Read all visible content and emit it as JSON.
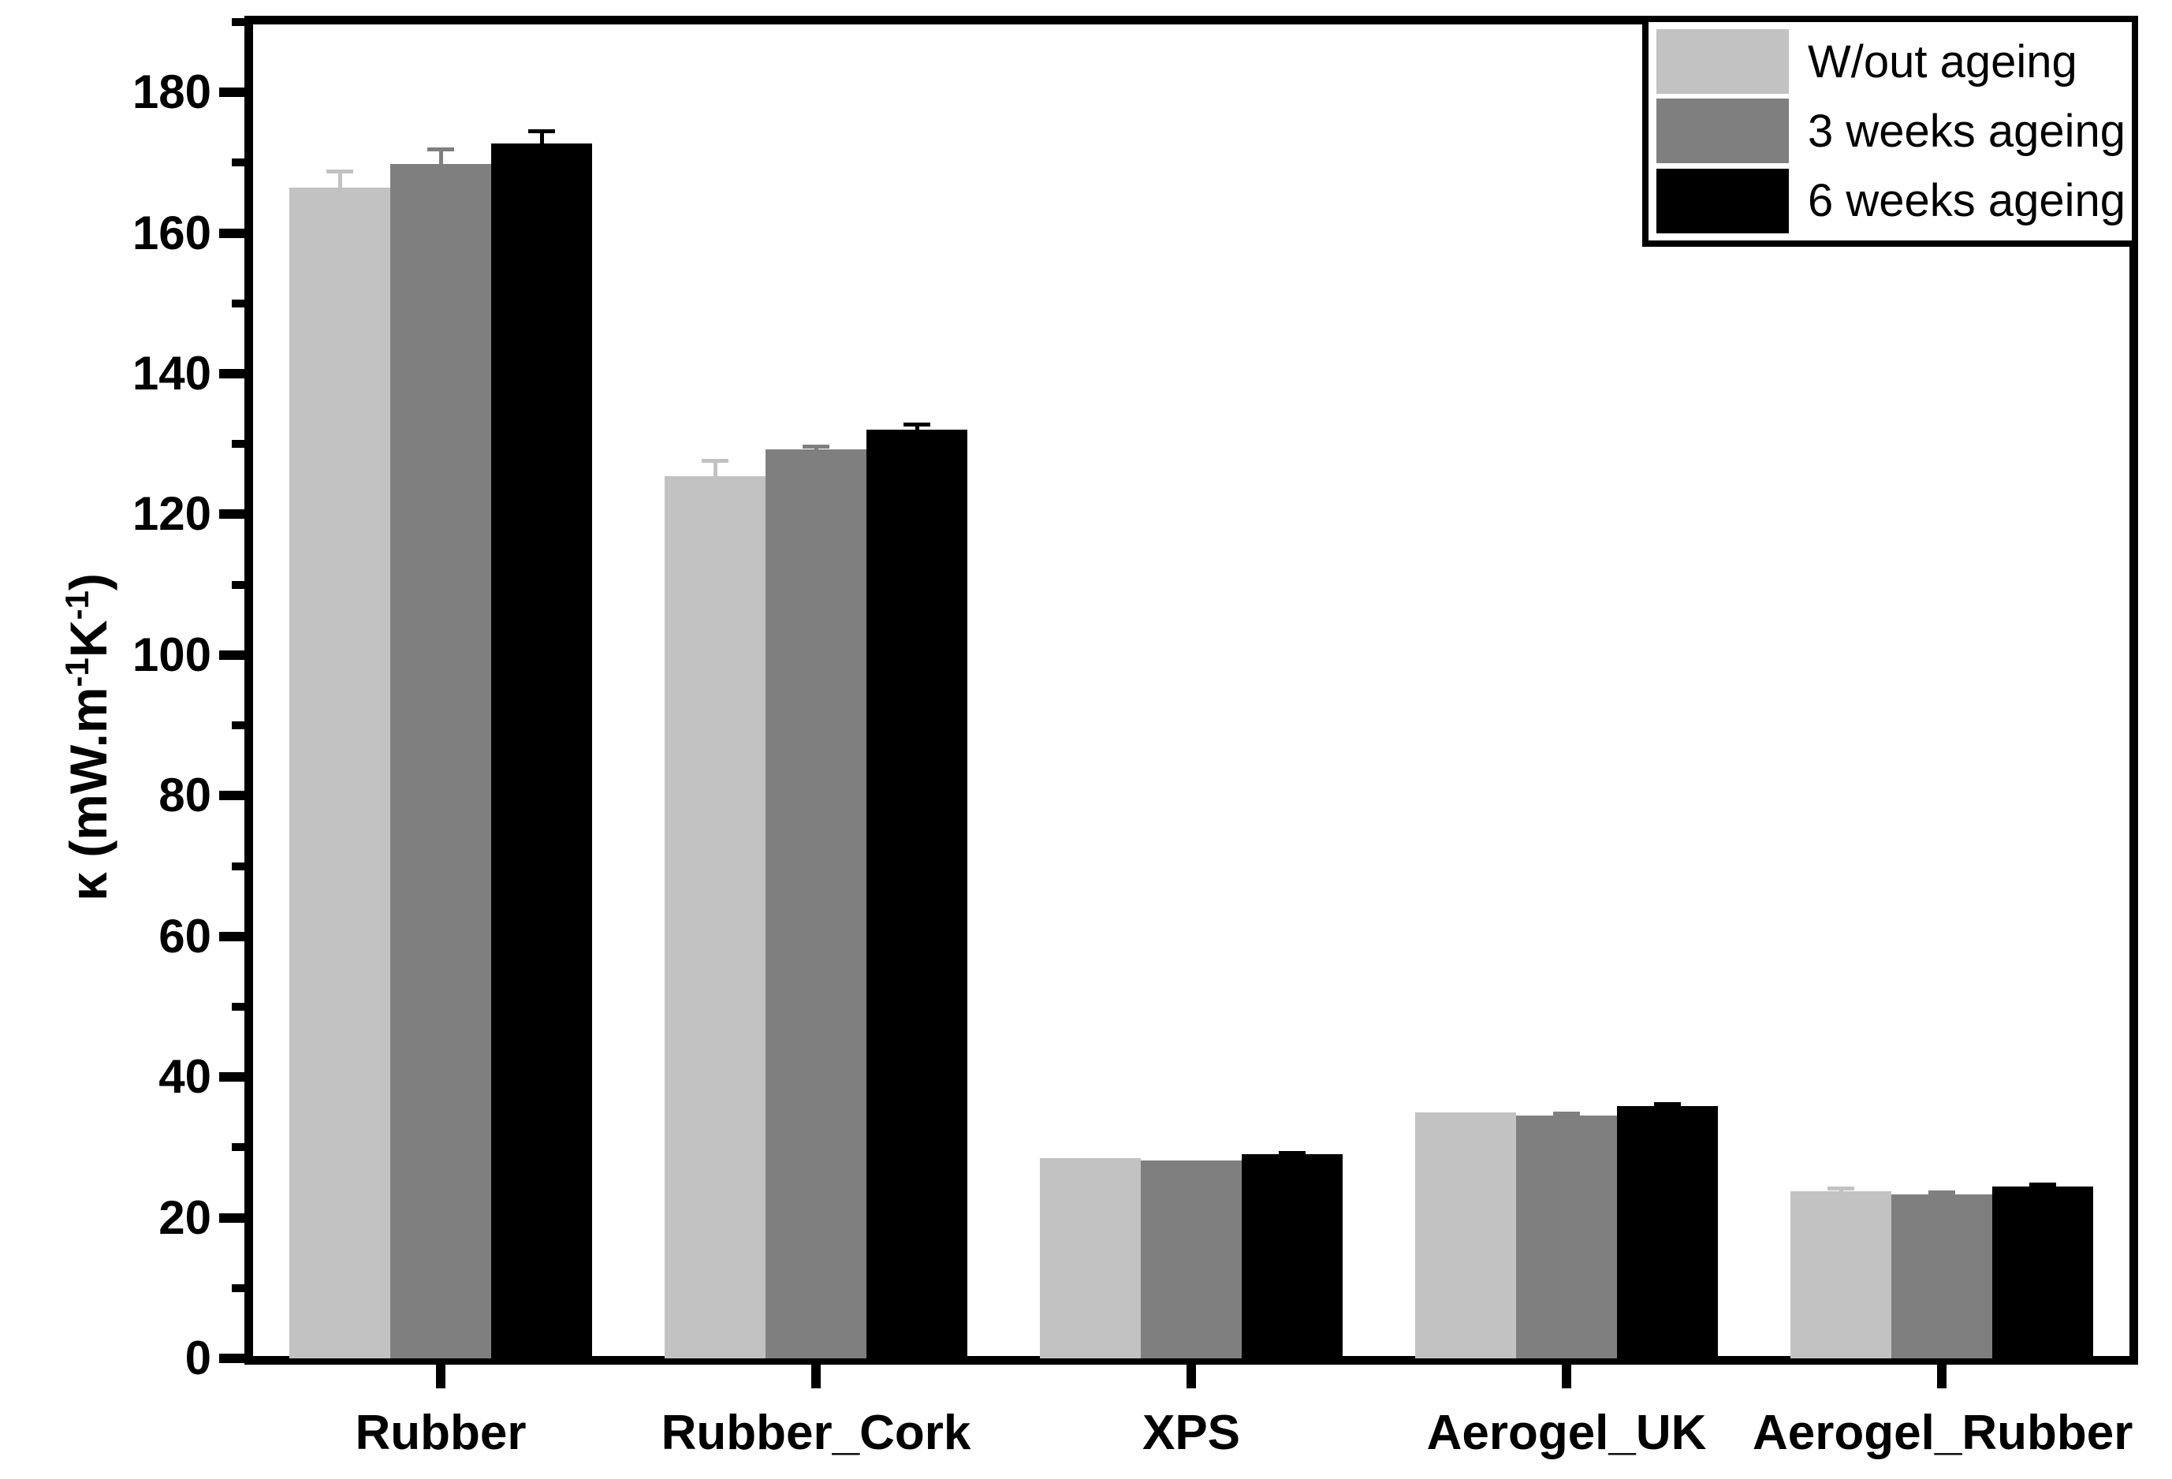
{
  "figure": {
    "background": "#ffffff",
    "frame_color": "#000000"
  },
  "chart_data": {
    "type": "bar",
    "title": "",
    "xlabel": "",
    "ylabel": "κ (mW.m-1K-1)",
    "ylabel_rich": [
      {
        "t": "κ (mW.m"
      },
      {
        "t": "-1",
        "sup": true
      },
      {
        "t": "K"
      },
      {
        "t": "-1",
        "sup": true
      },
      {
        "t": ")"
      }
    ],
    "categories": [
      "Rubber",
      "Rubber_Cork",
      "XPS",
      "Aerogel_UK",
      "Aerogel_Rubber"
    ],
    "series": [
      {
        "name": "W/out ageing",
        "color": "#c2c2c2",
        "values": [
          166.5,
          125.4,
          28.5,
          35.0,
          23.8
        ],
        "errors": [
          2.3,
          2.3,
          0,
          0,
          0.4
        ]
      },
      {
        "name": "3 weeks ageing",
        "color": "#7f7f7f",
        "values": [
          169.8,
          129.3,
          28.1,
          34.5,
          23.3
        ],
        "errors": [
          2.1,
          0.4,
          0,
          0.4,
          0.4
        ]
      },
      {
        "name": "6 weeks ageing",
        "color": "#000000",
        "values": [
          172.7,
          132.0,
          29.0,
          35.9,
          24.4
        ],
        "errors": [
          1.8,
          0.8,
          0.3,
          0.3,
          0.4
        ]
      }
    ],
    "ylim": [
      0,
      190
    ],
    "y_major_tick_step": 20,
    "y_minor_tick_step": 10,
    "y_tick_labels": [
      "0",
      "20",
      "40",
      "60",
      "80",
      "100",
      "120",
      "140",
      "160",
      "180"
    ],
    "grid": false,
    "error_bars": true,
    "legend_position": "top-right"
  }
}
